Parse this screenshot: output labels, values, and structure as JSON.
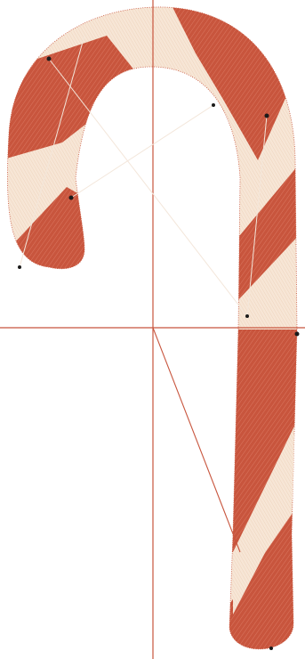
{
  "canvas": {
    "background": "#ffffff"
  },
  "colors": {
    "red_stitch": "#c8553d",
    "cream_stitch": "#f6e3d2",
    "crosshair": "#c8553d",
    "travel_line": "#f3e6da",
    "marker": "#1a1a1a"
  },
  "design": {
    "subject": "candy-cane-embroidery",
    "stitch_points": [
      "start-point",
      "node-a",
      "node-b",
      "node-c",
      "node-d",
      "end-point"
    ]
  }
}
